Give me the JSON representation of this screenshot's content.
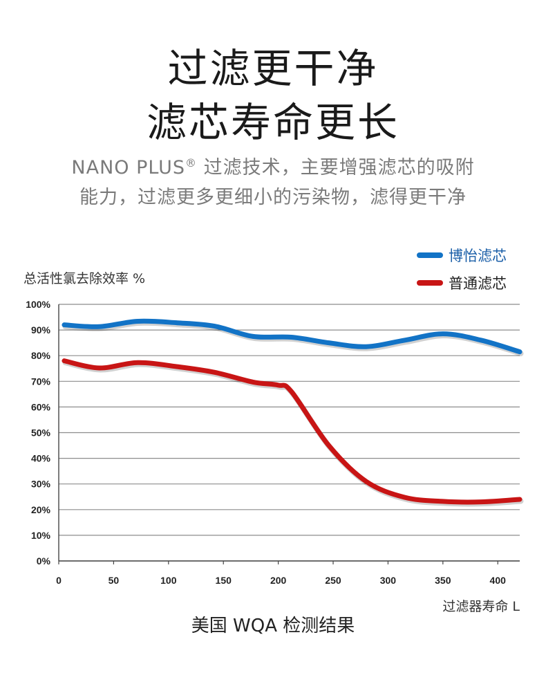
{
  "header": {
    "title_line1": "过滤更干净",
    "title_line2": "滤芯寿命更长",
    "subtitle_brand": "NANO PLUS",
    "subtitle_reg": "®",
    "subtitle_line1_rest": " 过滤技术，主要增强滤芯的吸附",
    "subtitle_line2": "能力，过滤更多更细小的污染物，滤得更干净"
  },
  "caption": "美国 WQA 检测结果",
  "chart_data": {
    "type": "line",
    "ylabel": "总活性氯去除效率 %",
    "xlabel": "过滤器寿命  L",
    "xlim": [
      0,
      420
    ],
    "ylim": [
      0,
      100
    ],
    "x_ticks": [
      0,
      50,
      100,
      150,
      200,
      250,
      300,
      350,
      400
    ],
    "y_ticks": [
      0,
      10,
      20,
      30,
      40,
      50,
      60,
      70,
      80,
      90,
      100
    ],
    "y_tick_labels": [
      "0%",
      "10%",
      "20%",
      "30%",
      "40%",
      "50%",
      "60%",
      "70%",
      "80%",
      "90%",
      "100%"
    ],
    "grid": "horizontal",
    "legend_position": "top-right",
    "series": [
      {
        "name": "博怡滤芯",
        "color": "#1273c6",
        "x": [
          5,
          37,
          72,
          108,
          142,
          177,
          212,
          246,
          280,
          315,
          350,
          385,
          420
        ],
        "y": [
          92,
          91.3,
          93.4,
          92.8,
          91.5,
          87.5,
          87.2,
          85,
          83.5,
          86,
          88.5,
          86,
          81.5
        ]
      },
      {
        "name": "普通滤芯",
        "color": "#c81515",
        "x": [
          5,
          37,
          72,
          108,
          142,
          177,
          200,
          212,
          246,
          280,
          315,
          350,
          385,
          420
        ],
        "y": [
          78,
          75.2,
          77.3,
          75.7,
          73.5,
          69.7,
          68.5,
          66,
          45,
          31,
          24.8,
          23.2,
          23,
          24
        ]
      }
    ]
  }
}
